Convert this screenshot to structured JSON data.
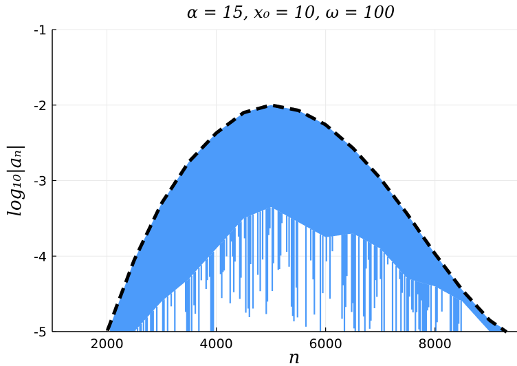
{
  "chart_data": {
    "type": "area",
    "title": "α = 15, x₀ = 10, ω = 100",
    "xlabel": "n",
    "ylabel": "log₁₀|aₙ|",
    "xlim": [
      1000,
      9500
    ],
    "ylim": [
      -5,
      -1
    ],
    "xticks": [
      2000,
      4000,
      6000,
      8000
    ],
    "yticks": [
      -1,
      -2,
      -3,
      -4,
      -5
    ],
    "xtick_labels": [
      "2000",
      "4000",
      "6000",
      "8000"
    ],
    "ytick_labels": [
      "-1",
      "-2",
      "-3",
      "-4",
      "-5"
    ],
    "grid": true,
    "series": [
      {
        "style": "dense oscillating filled band",
        "color": "#4c9bfa",
        "x": [
          2050,
          2500,
          3000,
          3500,
          4000,
          4500,
          5000,
          5500,
          6000,
          6500,
          7000,
          7500,
          8000,
          8500,
          9000,
          9300
        ],
        "upper": [
          -4.95,
          -4.05,
          -3.3,
          -2.75,
          -2.37,
          -2.1,
          -2.0,
          -2.07,
          -2.26,
          -2.57,
          -2.97,
          -3.45,
          -3.97,
          -4.45,
          -4.85,
          -4.98
        ],
        "lower": [
          -5.0,
          -5.0,
          -4.6,
          -4.3,
          -3.9,
          -3.5,
          -3.35,
          -3.55,
          -3.75,
          -3.7,
          -3.9,
          -4.3,
          -4.4,
          -4.6,
          -5.0,
          -5.0
        ]
      },
      {
        "style": "dashed envelope",
        "color": "#000000",
        "x": [
          1950,
          2500,
          3000,
          3500,
          4000,
          4500,
          5000,
          5500,
          6000,
          6500,
          7000,
          7500,
          8000,
          8500,
          9000,
          9400
        ],
        "values": [
          -5.1,
          -4.05,
          -3.3,
          -2.75,
          -2.37,
          -2.1,
          -2.0,
          -2.07,
          -2.26,
          -2.57,
          -2.97,
          -3.45,
          -3.97,
          -4.45,
          -4.85,
          -5.05
        ]
      }
    ]
  }
}
